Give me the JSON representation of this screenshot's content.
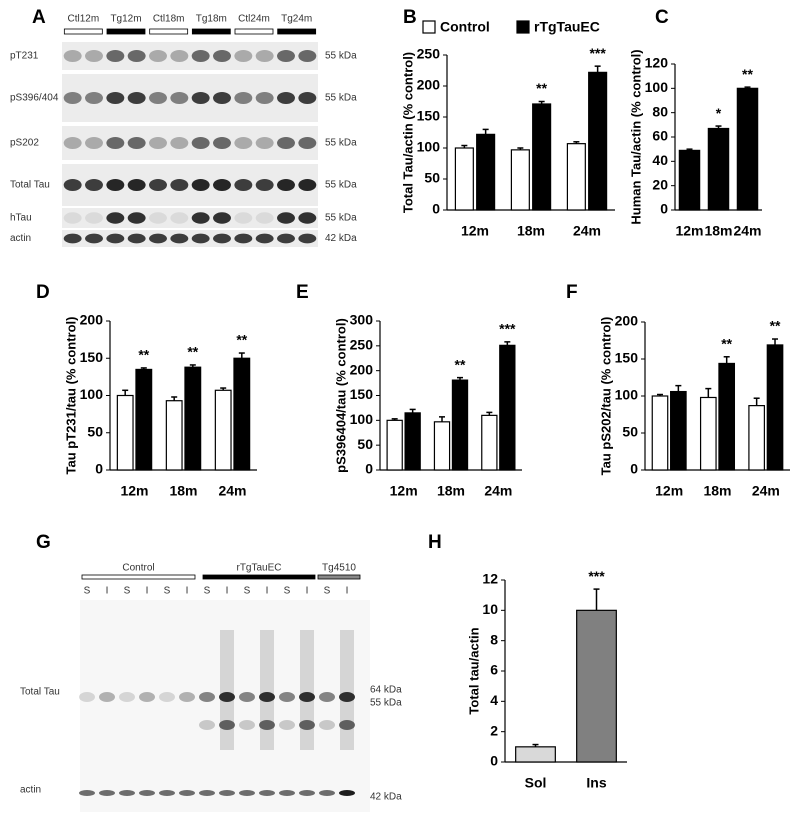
{
  "panel_labels": [
    "A",
    "B",
    "C",
    "D",
    "E",
    "F",
    "G",
    "H"
  ],
  "blot_a": {
    "columns": [
      "Ctl12m",
      "Tg12m",
      "Ctl18m",
      "Tg18m",
      "Ctl24m",
      "Tg24m"
    ],
    "rows": [
      {
        "label": "pT231",
        "size": "55 kDa"
      },
      {
        "label": "pS396/404",
        "size": "55 kDa"
      },
      {
        "label": "pS202",
        "size": "55 kDa"
      },
      {
        "label": "Total Tau",
        "size": "55 kDa"
      },
      {
        "label": "hTau",
        "size": "55 kDa"
      },
      {
        "label": "actin",
        "size": "42 kDa"
      }
    ]
  },
  "blot_g": {
    "groups": [
      "Control",
      "rTgTauEC",
      "Tg4510"
    ],
    "lanes": [
      "S",
      "I",
      "S",
      "I",
      "S",
      "I",
      "S",
      "I",
      "S",
      "I",
      "S",
      "I",
      "S",
      "I"
    ],
    "rows": [
      "Total Tau",
      "actin"
    ],
    "sizes": [
      "64 kDa",
      "55 kDa",
      "42 kDa"
    ]
  },
  "chart_data": [
    {
      "type": "bar",
      "ylabel": "Total Tau/actin (% control)",
      "categories": [
        "12m",
        "18m",
        "24m"
      ],
      "legend": "top",
      "series": [
        {
          "name": "Control",
          "color": "#ffffff",
          "values": [
            100,
            97,
            107
          ],
          "errors": [
            4,
            3,
            3
          ]
        },
        {
          "name": "rTgTauEC",
          "color": "#000000",
          "values": [
            122,
            171,
            222
          ],
          "errors": [
            8,
            4,
            10
          ]
        }
      ],
      "significance": [
        null,
        "**",
        "***"
      ],
      "ylim": [
        0,
        250
      ],
      "yticks": [
        0,
        50,
        100,
        150,
        200,
        250
      ]
    },
    {
      "type": "bar",
      "ylabel": "Human Tau/actin (% control)",
      "categories": [
        "12m",
        "18m",
        "24m"
      ],
      "series": [
        {
          "color": "#000000",
          "values": [
            49,
            67,
            100
          ],
          "errors": [
            1,
            2,
            1
          ]
        }
      ],
      "significance": [
        null,
        "*",
        "**"
      ],
      "ylim": [
        0,
        120
      ],
      "yticks": [
        0,
        20,
        40,
        60,
        80,
        100,
        120
      ]
    },
    {
      "type": "bar",
      "ylabel": "Tau pT231/tau (% control)",
      "categories": [
        "12m",
        "18m",
        "24m"
      ],
      "series": [
        {
          "color": "#ffffff",
          "values": [
            100,
            93,
            107
          ],
          "errors": [
            7,
            5,
            3
          ]
        },
        {
          "color": "#000000",
          "values": [
            135,
            138,
            150
          ],
          "errors": [
            2,
            3,
            7
          ]
        }
      ],
      "significance": [
        "**",
        "**",
        "**"
      ],
      "ylim": [
        0,
        200
      ],
      "yticks": [
        0,
        50,
        100,
        150,
        200
      ]
    },
    {
      "type": "bar",
      "ylabel": "pS396404/tau (% control)",
      "categories": [
        "12m",
        "18m",
        "24m"
      ],
      "series": [
        {
          "color": "#ffffff",
          "values": [
            100,
            97,
            110
          ],
          "errors": [
            3,
            10,
            6
          ]
        },
        {
          "color": "#000000",
          "values": [
            115,
            181,
            251
          ],
          "errors": [
            7,
            5,
            7
          ]
        }
      ],
      "significance": [
        null,
        "**",
        "***"
      ],
      "ylim": [
        0,
        300
      ],
      "yticks": [
        0,
        50,
        100,
        150,
        200,
        250,
        300
      ]
    },
    {
      "type": "bar",
      "ylabel": "Tau pS202/tau (% control)",
      "categories": [
        "12m",
        "18m",
        "24m"
      ],
      "series": [
        {
          "color": "#ffffff",
          "values": [
            100,
            98,
            87
          ],
          "errors": [
            2,
            12,
            10
          ]
        },
        {
          "color": "#000000",
          "values": [
            106,
            144,
            169
          ],
          "errors": [
            8,
            9,
            8
          ]
        }
      ],
      "significance": [
        null,
        "**",
        "**"
      ],
      "ylim": [
        0,
        200
      ],
      "yticks": [
        0,
        50,
        100,
        150,
        200
      ]
    },
    {
      "type": "bar",
      "ylabel": "Total tau/actin",
      "categories": [
        "Sol",
        "Ins"
      ],
      "series": [
        {
          "colors": [
            "#d9d9d9",
            "#808080"
          ],
          "values": [
            1,
            10
          ],
          "errors": [
            0.15,
            1.4
          ]
        }
      ],
      "significance": [
        null,
        "***"
      ],
      "ylim": [
        0,
        12
      ],
      "yticks": [
        0,
        2,
        4,
        6,
        8,
        10,
        12
      ]
    }
  ]
}
